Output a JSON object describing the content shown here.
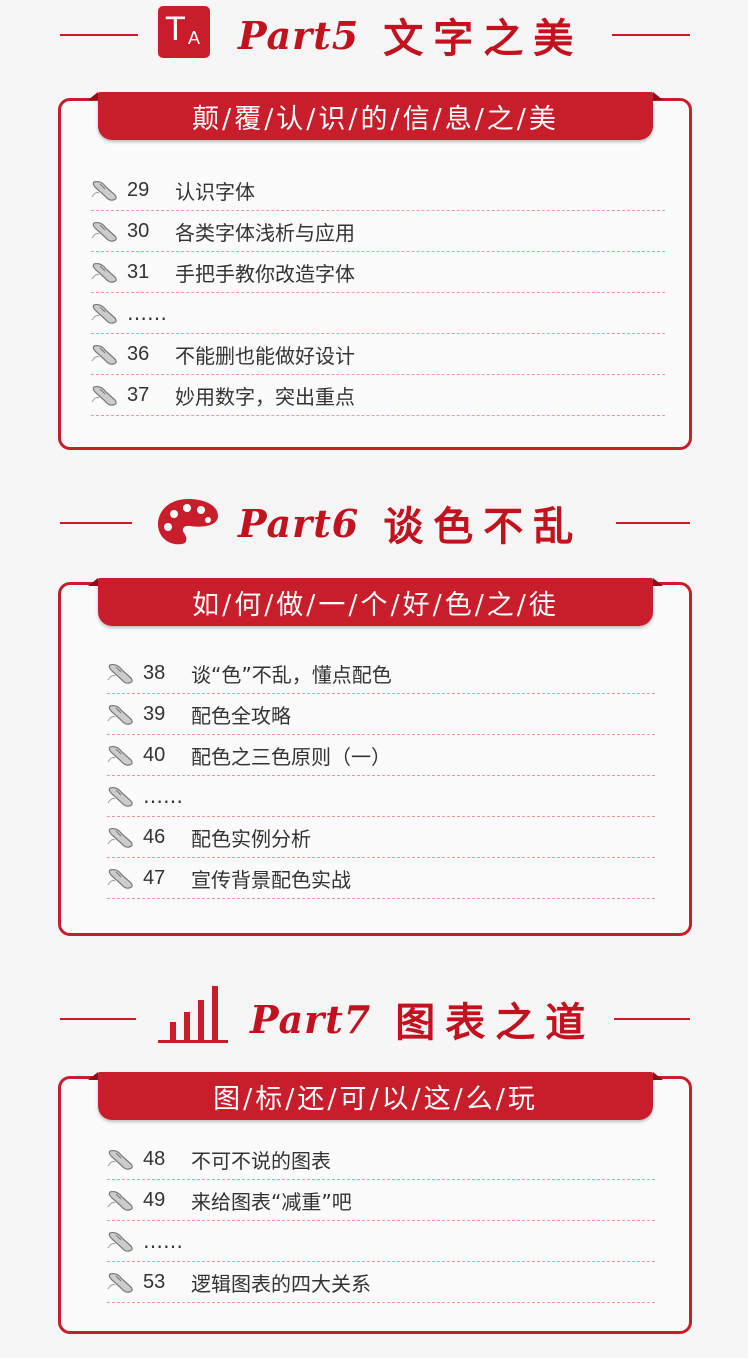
{
  "colors": {
    "accent": "#c81e2c",
    "dashed": "#e79aa0",
    "text": "#333333"
  },
  "parts": [
    {
      "icon": "font-ta-icon",
      "icon_letters": {
        "big": "T",
        "small": "A"
      },
      "label": "Part5",
      "name": "文字之美",
      "banner": "颠/覆/认/识/的/信/息/之/美",
      "items": [
        {
          "icon": "mouse-icon",
          "num": "29",
          "text": "认识字体"
        },
        {
          "icon": "mouse-icon",
          "num": "30",
          "text": "各类字体浅析与应用"
        },
        {
          "icon": "mouse-icon",
          "num": "31",
          "text": "手把手教你改造字体"
        },
        {
          "icon": "mouse-icon",
          "num": "",
          "text": "……"
        },
        {
          "icon": "mouse-icon",
          "num": "36",
          "text": "不能删也能做好设计"
        },
        {
          "icon": "mouse-icon",
          "num": "37",
          "text": "妙用数字，突出重点"
        }
      ]
    },
    {
      "icon": "palette-icon",
      "label": "Part6",
      "name": "谈色不乱",
      "banner": "如/何/做/一/个/好/色/之/徒",
      "items": [
        {
          "icon": "mouse-icon",
          "num": "38",
          "text": "谈“色”不乱，懂点配色"
        },
        {
          "icon": "mouse-icon",
          "num": "39",
          "text": "配色全攻略"
        },
        {
          "icon": "mouse-icon",
          "num": "40",
          "text": "配色之三色原则（一）"
        },
        {
          "icon": "mouse-icon",
          "num": "",
          "text": "……"
        },
        {
          "icon": "mouse-icon",
          "num": "46",
          "text": "配色实例分析"
        },
        {
          "icon": "mouse-icon",
          "num": "47",
          "text": "宣传背景配色实战"
        }
      ]
    },
    {
      "icon": "bar-chart-icon",
      "label": "Part7",
      "name": "图表之道",
      "banner": "图/标/还/可/以/这/么/玩",
      "items": [
        {
          "icon": "mouse-icon",
          "num": "48",
          "text": "不可不说的图表"
        },
        {
          "icon": "mouse-icon",
          "num": "49",
          "text": "来给图表“减重”吧"
        },
        {
          "icon": "mouse-icon",
          "num": "",
          "text": "……"
        },
        {
          "icon": "mouse-icon",
          "num": "53",
          "text": "逻辑图表的四大关系"
        }
      ]
    }
  ]
}
